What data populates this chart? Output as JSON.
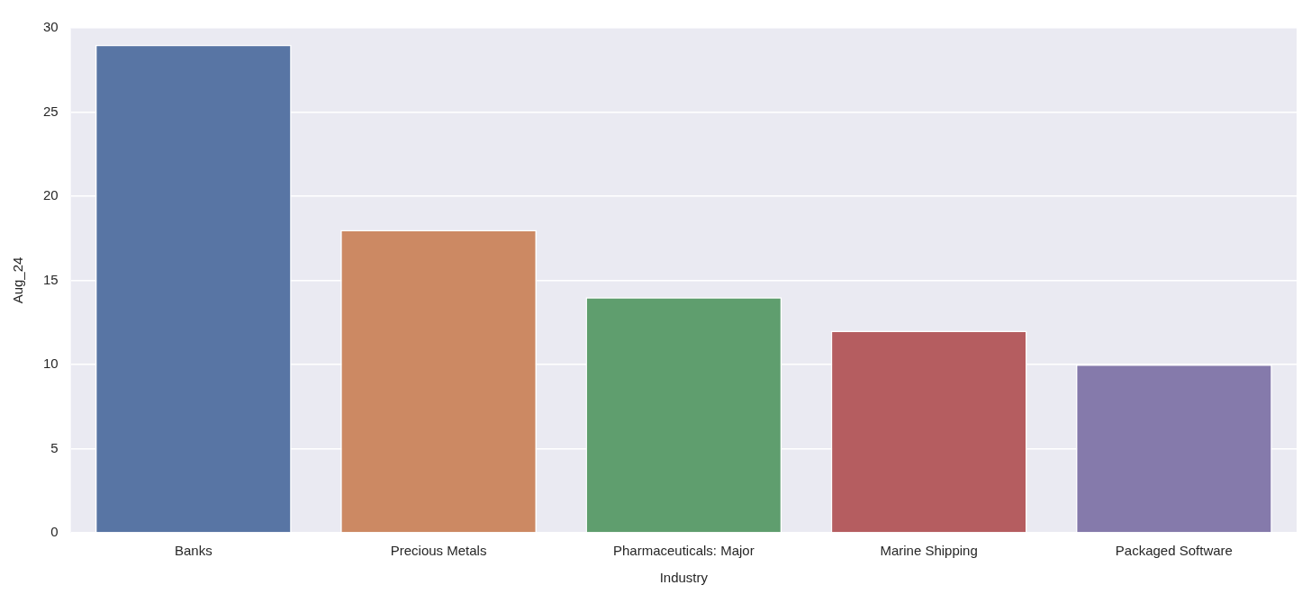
{
  "chart_data": {
    "type": "bar",
    "xlabel": "Industry",
    "ylabel": "Aug_24",
    "categories": [
      "Banks",
      "Precious Metals",
      "Pharmaceuticals: Major",
      "Marine Shipping",
      "Packaged Software"
    ],
    "values": [
      29,
      18,
      14,
      12,
      10
    ],
    "colors": [
      "#5875a4",
      "#cc8963",
      "#5f9e6e",
      "#b55d60",
      "#857aab"
    ],
    "ylim": [
      0,
      30
    ],
    "yticks": [
      0,
      5,
      10,
      15,
      20,
      25,
      30
    ],
    "grid": "y",
    "legend": false
  }
}
